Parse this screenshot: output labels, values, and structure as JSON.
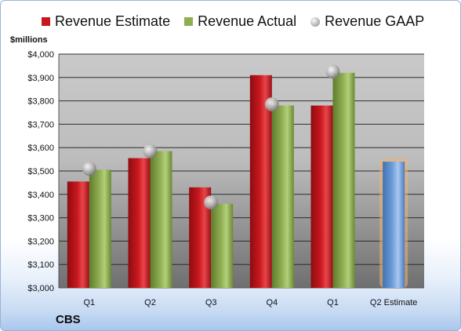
{
  "legend": {
    "estimate": "Revenue Estimate",
    "actual": "Revenue Actual",
    "gaap": "Revenue GAAP"
  },
  "ylabel": "$millions",
  "company": "CBS",
  "colors": {
    "estimate": "#c8181e",
    "actual": "#8fae52",
    "gaap": "#b4b4b4",
    "forecast": "#6f9fd8",
    "forecast_glow": "#f4b36a",
    "plot_bg_top": "#c9c9c9",
    "plot_bg_bottom": "#6f6f6f"
  },
  "chart_data": {
    "type": "bar",
    "categories": [
      "Q1",
      "Q2",
      "Q3",
      "Q4",
      "Q1",
      "Q2 Estimate"
    ],
    "series": [
      {
        "name": "Revenue Estimate",
        "values": [
          3455,
          3555,
          3430,
          3910,
          3780,
          null
        ]
      },
      {
        "name": "Revenue Actual",
        "values": [
          3505,
          3585,
          3360,
          3780,
          3920,
          null
        ]
      },
      {
        "name": "Revenue GAAP",
        "values": [
          3510,
          3585,
          3365,
          3785,
          3925,
          null
        ]
      }
    ],
    "forecast": {
      "category": "Q2 Estimate",
      "value": 3540
    },
    "ylim": [
      3000,
      4000
    ],
    "yticks": [
      3000,
      3100,
      3200,
      3300,
      3400,
      3500,
      3600,
      3700,
      3800,
      3900,
      4000
    ],
    "ytick_labels": [
      "$3,000",
      "$3,100",
      "$3,200",
      "$3,300",
      "$3,400",
      "$3,500",
      "$3,600",
      "$3,700",
      "$3,800",
      "$3,900",
      "$4,000"
    ],
    "grid": true,
    "legend_position": "top"
  }
}
